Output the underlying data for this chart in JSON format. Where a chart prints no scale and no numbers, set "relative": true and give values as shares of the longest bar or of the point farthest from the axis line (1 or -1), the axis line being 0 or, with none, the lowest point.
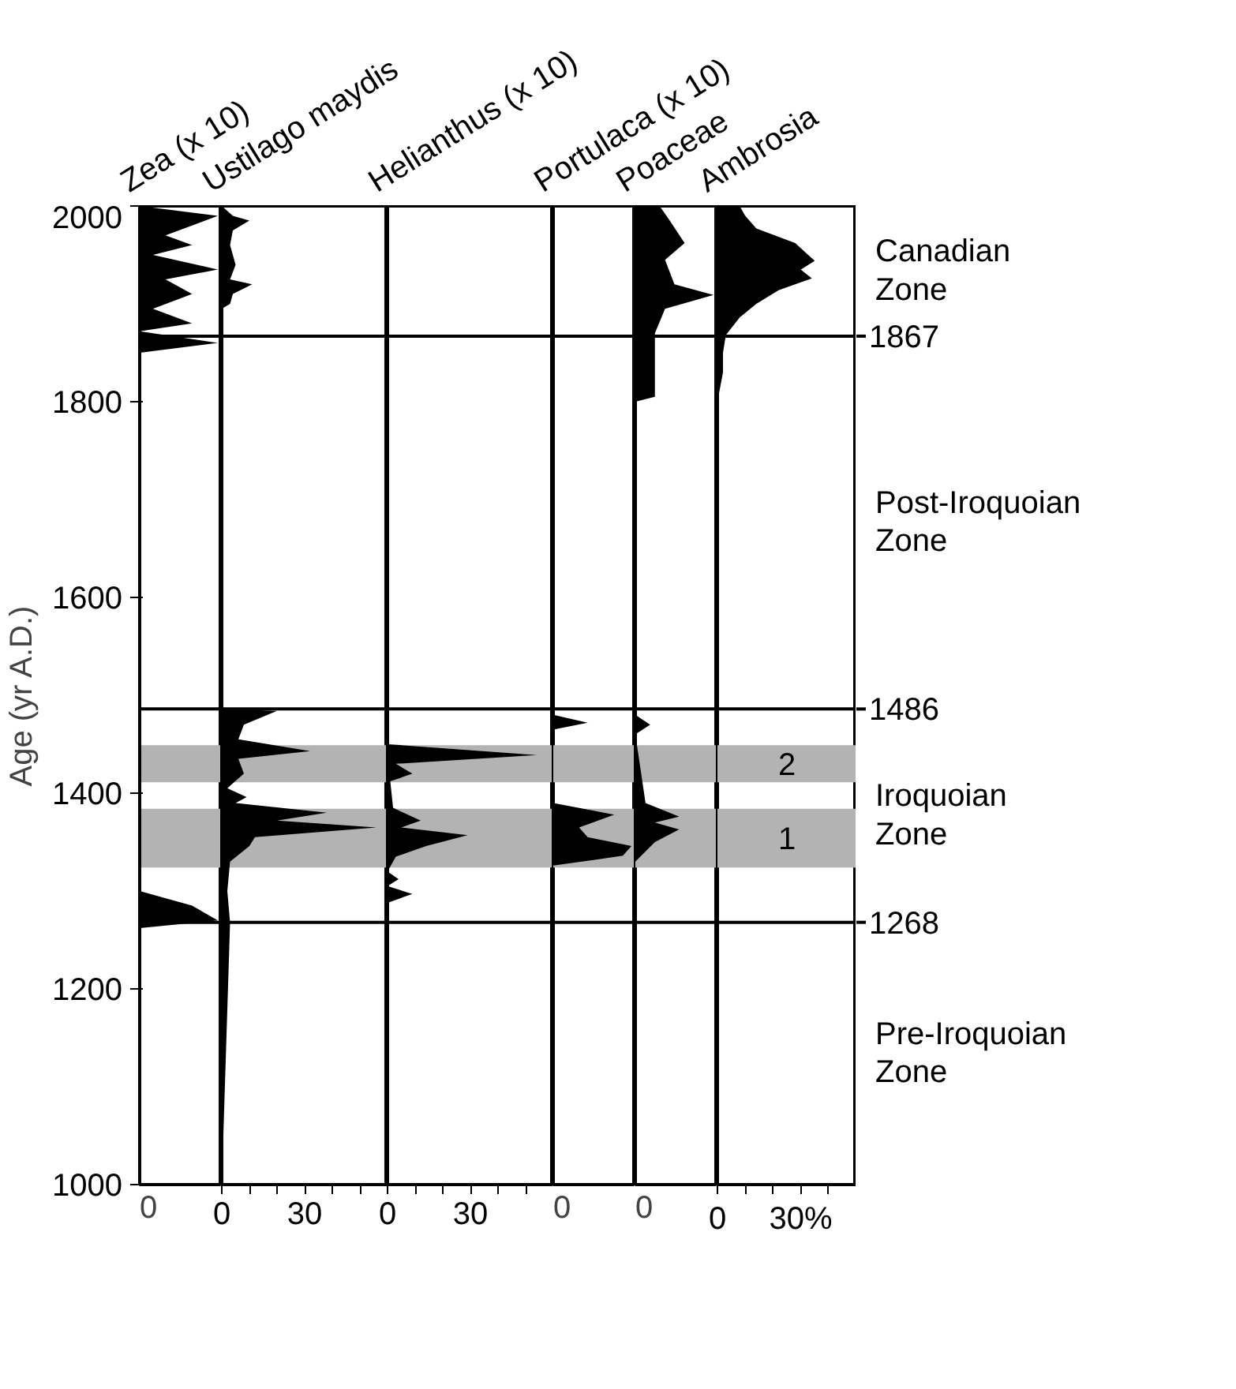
{
  "chart_data": [
    {
      "type": "area",
      "orientation": "horizontal",
      "relative": true,
      "title": "Zea (x 10)",
      "tick_labels": "y",
      "ylabel": "Age (yr A.D.)",
      "color": "#000000",
      "x": [
        2000,
        1990,
        1980,
        1970,
        1960,
        1950,
        1935,
        1925,
        1910,
        1895,
        1880,
        1872,
        1860,
        1850,
        1300,
        1285,
        1270,
        1262,
        1000
      ],
      "values": [
        0,
        1,
        0.67,
        0.33,
        0.67,
        0.17,
        1,
        0.33,
        0.67,
        0.17,
        0.67,
        0,
        1,
        0,
        0,
        0.67,
        1,
        0,
        0
      ],
      "ylim": [
        1000,
        2000
      ],
      "yticks": [
        1000,
        1200,
        1400,
        1600,
        1800,
        2000
      ],
      "ref_lines": [
        {
          "axis": "y",
          "value": 1867,
          "label": null
        },
        {
          "axis": "y",
          "value": 1486,
          "label": null
        },
        {
          "axis": "y",
          "value": 1268,
          "label": null
        }
      ],
      "bands": [
        {
          "axis": "y",
          "from": 1411,
          "to": 1449,
          "label": null,
          "color": "#b3b3b3"
        },
        {
          "axis": "y",
          "from": 1324,
          "to": 1384,
          "label": null,
          "color": "#b3b3b3"
        }
      ],
      "annotations": [
        "0"
      ]
    },
    {
      "type": "area",
      "orientation": "horizontal",
      "title": "Ustilago maydis",
      "color": "#000000",
      "tick_labels": "x",
      "x": [
        2000,
        1990,
        1985,
        1975,
        1960,
        1940,
        1925,
        1920,
        1910,
        1900,
        1895,
        1486,
        1484,
        1470,
        1455,
        1443,
        1435,
        1420,
        1405,
        1396,
        1390,
        1380,
        1372,
        1365,
        1355,
        1346,
        1330,
        1300,
        1268,
        1000
      ],
      "values": [
        0,
        4,
        10,
        4,
        3,
        5,
        3,
        11,
        4,
        3,
        0,
        0,
        20,
        8,
        6,
        32,
        6,
        8,
        2,
        9,
        5,
        38,
        20,
        56,
        12,
        10,
        3,
        2,
        3,
        0
      ],
      "xlim": [
        0,
        60
      ],
      "xticks": [
        0,
        {
          "value": 10,
          "label": null
        },
        {
          "value": 20,
          "label": null
        },
        30,
        {
          "value": 40,
          "label": null
        },
        {
          "value": 50,
          "label": null
        }
      ],
      "ylim": [
        1000,
        2000
      ],
      "ref_lines": [
        {
          "axis": "y",
          "value": 1867,
          "label": null
        },
        {
          "axis": "y",
          "value": 1486,
          "label": null
        },
        {
          "axis": "y",
          "value": 1268,
          "label": null
        }
      ],
      "bands": [
        {
          "axis": "y",
          "from": 1411,
          "to": 1449,
          "label": null,
          "color": "#b3b3b3"
        },
        {
          "axis": "y",
          "from": 1324,
          "to": 1384,
          "label": null,
          "color": "#b3b3b3"
        }
      ]
    },
    {
      "type": "area",
      "orientation": "horizontal",
      "title": "Helianthus (x 10)",
      "color": "#000000",
      "tick_labels": "x",
      "x": [
        2000,
        1450,
        1439,
        1430,
        1420,
        1412,
        1385,
        1372,
        1365,
        1357,
        1346,
        1335,
        1320,
        1312,
        1305,
        1297,
        1288,
        1000
      ],
      "values": [
        0,
        0,
        54,
        3,
        9,
        1,
        2,
        12,
        5,
        29,
        14,
        3,
        0,
        4,
        0,
        9,
        0,
        0
      ],
      "xlim": [
        0,
        60
      ],
      "xticks": [
        0,
        {
          "value": 10,
          "label": null
        },
        {
          "value": 20,
          "label": null
        },
        30,
        {
          "value": 40,
          "label": null
        },
        {
          "value": 50,
          "label": null
        }
      ],
      "ylim": [
        1000,
        2000
      ],
      "ref_lines": [
        {
          "axis": "y",
          "value": 1867,
          "label": null
        },
        {
          "axis": "y",
          "value": 1486,
          "label": null
        },
        {
          "axis": "y",
          "value": 1268,
          "label": null
        }
      ],
      "bands": [
        {
          "axis": "y",
          "from": 1411,
          "to": 1449,
          "label": null,
          "color": "#b3b3b3"
        },
        {
          "axis": "y",
          "from": 1324,
          "to": 1384,
          "label": null,
          "color": "#b3b3b3"
        }
      ]
    },
    {
      "type": "area",
      "orientation": "horizontal",
      "relative": true,
      "title": "Portulaca (x 10)",
      "tick_labels": false,
      "color": "#000000",
      "x": [
        2000,
        1480,
        1472,
        1465,
        1390,
        1378,
        1365,
        1355,
        1346,
        1336,
        1326,
        1000
      ],
      "values": [
        0,
        0,
        0.44,
        0,
        0,
        0.78,
        0.33,
        0.44,
        1,
        0.89,
        0,
        0
      ],
      "ylim": [
        1000,
        2000
      ],
      "ref_lines": [
        {
          "axis": "y",
          "value": 1867,
          "label": null
        },
        {
          "axis": "y",
          "value": 1486,
          "label": null
        },
        {
          "axis": "y",
          "value": 1268,
          "label": null
        }
      ],
      "bands": [
        {
          "axis": "y",
          "from": 1411,
          "to": 1449,
          "label": null,
          "color": "#b3b3b3"
        },
        {
          "axis": "y",
          "from": 1324,
          "to": 1384,
          "label": null,
          "color": "#b3b3b3"
        }
      ],
      "annotations": [
        "0"
      ]
    },
    {
      "type": "area",
      "orientation": "horizontal",
      "relative": true,
      "title": "Poaceae",
      "tick_labels": false,
      "color": "#000000",
      "x": [
        2000,
        1985,
        1962,
        1945,
        1920,
        1909,
        1895,
        1870,
        1850,
        1805,
        1800,
        1480,
        1470,
        1460,
        1390,
        1376,
        1370,
        1363,
        1350,
        1330,
        1000
      ],
      "values": [
        0.31,
        0.44,
        0.63,
        0.38,
        0.5,
        1,
        0.38,
        0.25,
        0.25,
        0.25,
        0,
        0,
        0.19,
        0,
        0.13,
        0.56,
        0.25,
        0.56,
        0.25,
        0,
        0
      ],
      "ylim": [
        1000,
        2000
      ],
      "ref_lines": [
        {
          "axis": "y",
          "value": 1867,
          "label": null
        },
        {
          "axis": "y",
          "value": 1486,
          "label": null
        },
        {
          "axis": "y",
          "value": 1268,
          "label": null
        }
      ],
      "bands": [
        {
          "axis": "y",
          "from": 1411,
          "to": 1449,
          "label": null,
          "color": "#b3b3b3"
        },
        {
          "axis": "y",
          "from": 1324,
          "to": 1384,
          "label": null,
          "color": "#b3b3b3"
        }
      ],
      "annotations": [
        "0"
      ]
    },
    {
      "type": "area",
      "orientation": "horizontal",
      "title": "Ambrosia",
      "color": "#000000",
      "tick_labels": "x",
      "x": [
        2000,
        1990,
        1977,
        1962,
        1944,
        1935,
        1926,
        1914,
        1900,
        1886,
        1868,
        1850,
        1830,
        1800,
        1000
      ],
      "values": [
        8,
        10,
        14,
        28,
        35,
        30,
        34,
        22,
        14,
        8,
        3,
        2,
        2,
        0,
        0
      ],
      "xlim": [
        0,
        50
      ],
      "xticks": [
        0,
        {
          "value": 10,
          "label": null
        },
        {
          "value": 20,
          "label": null
        },
        {
          "value": 30,
          "label": "30%"
        },
        {
          "value": 40,
          "label": null
        }
      ],
      "ylim": [
        1000,
        2000
      ],
      "ref_lines": [
        {
          "axis": "y",
          "value": 1867,
          "label": "1867"
        },
        {
          "axis": "y",
          "value": 1486,
          "label": "1486"
        },
        {
          "axis": "y",
          "value": 1268,
          "label": "1268"
        }
      ],
      "bands": [
        {
          "axis": "y",
          "from": 1411,
          "to": 1449,
          "label": "2",
          "color": "#b3b3b3"
        },
        {
          "axis": "y",
          "from": 1324,
          "to": 1384,
          "label": "1",
          "color": "#b3b3b3"
        }
      ],
      "annotations": [
        "Canadian\nZone",
        "Post-Iroquoian\nZone",
        "Iroquoian\nZone",
        "Pre-Iroquoian\nZone"
      ]
    }
  ]
}
